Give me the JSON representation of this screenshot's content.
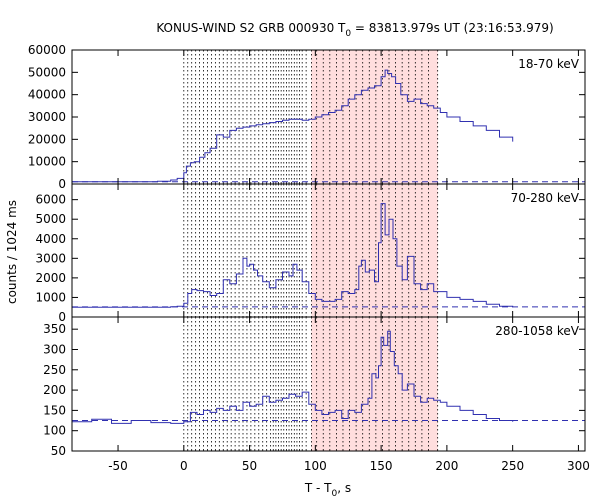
{
  "chart_data": {
    "type": "line",
    "title": {
      "main": "KONUS-WIND S2 GRB 000930 T",
      "sub0": "0",
      "rest": " = 83813.979s UT (23:16:53.979)"
    },
    "xlabel": {
      "main": "T - T",
      "sub0": "0",
      "rest": ", s"
    },
    "ylabel": "counts / 1024 ms",
    "xlim": [
      -85,
      305
    ],
    "xticks": [
      -50,
      0,
      50,
      100,
      150,
      200,
      250,
      300
    ],
    "xtick_labels": [
      "-50",
      "0",
      "50",
      "100",
      "150",
      "200",
      "250",
      "300"
    ],
    "colors": {
      "series": "#3030b0",
      "shade": "#ffdede",
      "background_line": "#3030b0",
      "vlines": "#000000"
    },
    "shaded_interval": [
      97,
      193
    ],
    "vertical_lines_x": [
      0,
      3,
      6,
      9,
      12,
      15,
      18,
      21,
      24,
      27,
      30,
      33,
      36,
      39,
      42,
      45,
      48,
      51,
      54,
      57,
      60,
      63,
      66,
      68,
      70,
      72,
      74,
      76,
      78,
      80,
      82,
      84,
      86,
      88,
      90,
      93,
      97,
      101,
      106,
      111,
      116,
      121,
      126,
      131,
      136,
      141,
      146,
      151,
      156,
      161,
      166,
      171,
      176,
      181,
      186,
      193
    ],
    "panels": [
      {
        "band": "18-70 keV",
        "ylim": [
          0,
          60000
        ],
        "yticks": [
          0,
          10000,
          20000,
          30000,
          40000,
          50000,
          60000
        ],
        "ytick_labels": [
          "0",
          "10000",
          "20000",
          "30000",
          "40000",
          "50000",
          "60000"
        ],
        "background": 1000,
        "series": {
          "x": [
            -85,
            -60,
            -40,
            -20,
            -10,
            -5,
            0,
            2,
            5,
            8,
            12,
            16,
            20,
            25,
            30,
            35,
            40,
            45,
            50,
            55,
            60,
            65,
            70,
            75,
            80,
            85,
            90,
            95,
            100,
            105,
            110,
            115,
            120,
            125,
            130,
            135,
            140,
            145,
            150,
            153,
            155,
            158,
            161,
            165,
            170,
            175,
            180,
            185,
            190,
            195,
            200,
            210,
            220,
            230,
            240,
            250
          ],
          "y": [
            1000,
            1000,
            1000,
            1200,
            1800,
            2500,
            5000,
            8000,
            9500,
            10000,
            12000,
            14000,
            16000,
            22000,
            21000,
            24000,
            25000,
            25500,
            26000,
            26500,
            27000,
            27500,
            28000,
            28500,
            29000,
            29000,
            28500,
            29000,
            30000,
            31000,
            32000,
            33000,
            35000,
            38000,
            40000,
            42000,
            43000,
            44000,
            48000,
            51000,
            49500,
            48000,
            45000,
            40000,
            37000,
            38000,
            36000,
            35000,
            34000,
            32000,
            30000,
            28000,
            26000,
            24000,
            21000,
            19000
          ]
        }
      },
      {
        "band": "70-280 keV",
        "ylim": [
          0,
          6800
        ],
        "yticks": [
          0,
          1000,
          2000,
          3000,
          4000,
          5000,
          6000
        ],
        "ytick_labels": [
          "0",
          "1000",
          "2000",
          "3000",
          "4000",
          "5000",
          "6000"
        ],
        "background": 520,
        "series": {
          "x": [
            -85,
            -40,
            -10,
            -5,
            0,
            3,
            6,
            10,
            15,
            20,
            25,
            30,
            35,
            40,
            45,
            48,
            50,
            53,
            56,
            60,
            65,
            70,
            75,
            80,
            83,
            86,
            90,
            95,
            100,
            105,
            110,
            115,
            120,
            125,
            130,
            133,
            135,
            138,
            141,
            145,
            148,
            150,
            153,
            156,
            159,
            162,
            166,
            170,
            175,
            180,
            185,
            190,
            200,
            210,
            220,
            230,
            240,
            250
          ],
          "y": [
            500,
            500,
            520,
            550,
            700,
            1200,
            1400,
            1350,
            1300,
            1100,
            1200,
            1900,
            1700,
            2200,
            3000,
            2600,
            2700,
            2400,
            2100,
            1800,
            1500,
            1900,
            2300,
            2100,
            2700,
            2400,
            1800,
            1200,
            900,
            800,
            800,
            900,
            1300,
            1200,
            1400,
            2600,
            2900,
            2300,
            2400,
            1800,
            3800,
            5800,
            4200,
            5000,
            4000,
            2600,
            1900,
            3100,
            1700,
            1400,
            1700,
            1300,
            1000,
            900,
            800,
            650,
            550,
            500
          ]
        }
      },
      {
        "band": "280-1058 keV",
        "ylim": [
          50,
          380
        ],
        "yticks": [
          50,
          100,
          150,
          200,
          250,
          300,
          350
        ],
        "ytick_labels": [
          "50",
          "100",
          "150",
          "200",
          "250",
          "300",
          "350"
        ],
        "background": 125,
        "series": {
          "x": [
            -85,
            -70,
            -55,
            -40,
            -25,
            -10,
            0,
            5,
            10,
            15,
            20,
            25,
            30,
            35,
            40,
            45,
            50,
            55,
            60,
            65,
            70,
            75,
            80,
            85,
            90,
            95,
            100,
            105,
            110,
            115,
            120,
            125,
            130,
            135,
            140,
            143,
            146,
            148,
            150,
            152,
            155,
            157,
            160,
            163,
            166,
            170,
            175,
            180,
            185,
            190,
            195,
            200,
            210,
            220,
            230,
            240,
            250
          ],
          "y": [
            122,
            128,
            118,
            125,
            120,
            118,
            122,
            145,
            140,
            150,
            145,
            155,
            150,
            160,
            150,
            170,
            160,
            165,
            185,
            170,
            175,
            180,
            190,
            185,
            195,
            165,
            150,
            140,
            145,
            150,
            130,
            150,
            145,
            165,
            180,
            240,
            230,
            260,
            330,
            310,
            345,
            295,
            260,
            240,
            200,
            215,
            185,
            170,
            180,
            175,
            170,
            160,
            150,
            140,
            130,
            125,
            122
          ]
        }
      }
    ]
  }
}
